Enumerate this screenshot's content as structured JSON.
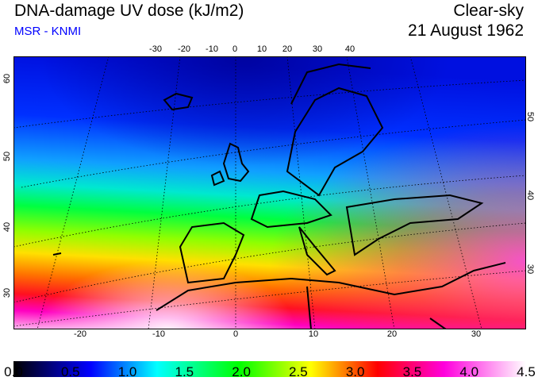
{
  "header": {
    "title": "DNA-damage UV dose (kJ/m2)",
    "source": "MSR - KNMI",
    "condition": "Clear-sky",
    "date": "21 August 1962"
  },
  "axes": {
    "top_lon": [
      "-30",
      "-20",
      "-10",
      "0",
      "10",
      "20",
      "30",
      "40"
    ],
    "bottom_lon": [
      "-20",
      "-10",
      "0",
      "10",
      "20",
      "30"
    ],
    "left_lat": [
      "60",
      "50",
      "40",
      "30"
    ],
    "right_lat": [
      "50",
      "40",
      "30"
    ]
  },
  "colorbar": {
    "labels": [
      "0.0",
      "0.5",
      "1.0",
      "1.5",
      "2.0",
      "2.5",
      "3.0",
      "3.5",
      "4.0",
      "4.5"
    ],
    "min": 0.0,
    "max": 4.5,
    "colors": [
      "#000000",
      "#0000ff",
      "#00ffff",
      "#00ff00",
      "#ffff00",
      "#ff0000",
      "#ff00dd",
      "#ffffff"
    ]
  }
}
